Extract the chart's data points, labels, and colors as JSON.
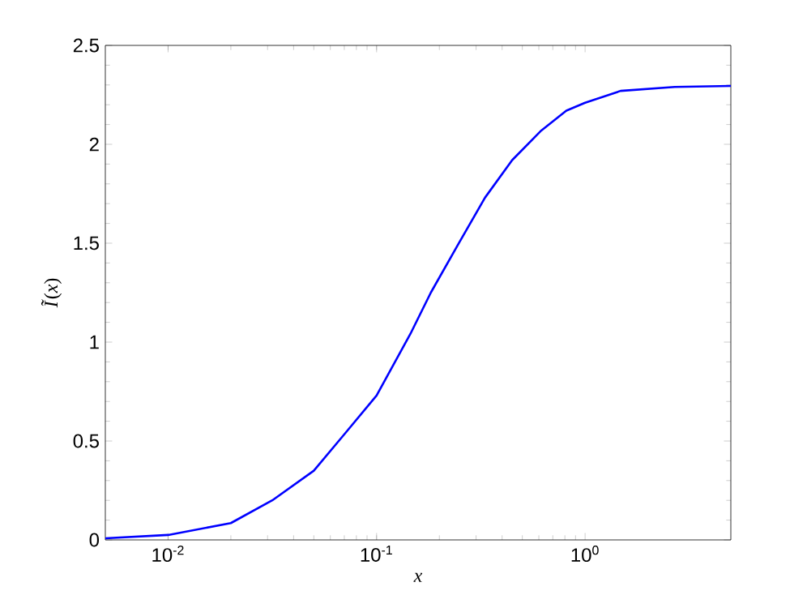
{
  "chart_data": {
    "type": "line",
    "xlabel": "*x*",
    "ylabel": "*Ĩ*(*x*)",
    "log": "x",
    "xlim": [
      0.005,
      5
    ],
    "ylim": [
      0,
      2.5
    ],
    "xticks": [
      {
        "value": 0.01,
        "label": "10$^{-2}$"
      },
      {
        "value": 0.1,
        "label": "10$^{-1}$"
      },
      {
        "value": 1,
        "label": "10$^{0}$"
      }
    ],
    "yticks": [
      0,
      0.5,
      1,
      1.5,
      2,
      2.5
    ],
    "marker": "none",
    "line_style": "solid",
    "series": [
      {
        "color": "#0000ff",
        "x": [
          0.005,
          0.01,
          0.02,
          0.0316,
          0.05,
          0.0708,
          0.1,
          0.145,
          0.182,
          0.245,
          0.331,
          0.447,
          0.617,
          0.813,
          1,
          1.48,
          2.69,
          5
        ],
        "values": [
          0.008,
          0.025,
          0.085,
          0.2,
          0.35,
          0.54,
          0.73,
          1.04,
          1.25,
          1.49,
          1.73,
          1.92,
          2.07,
          2.17,
          2.21,
          2.27,
          2.29,
          2.295
        ]
      }
    ]
  }
}
